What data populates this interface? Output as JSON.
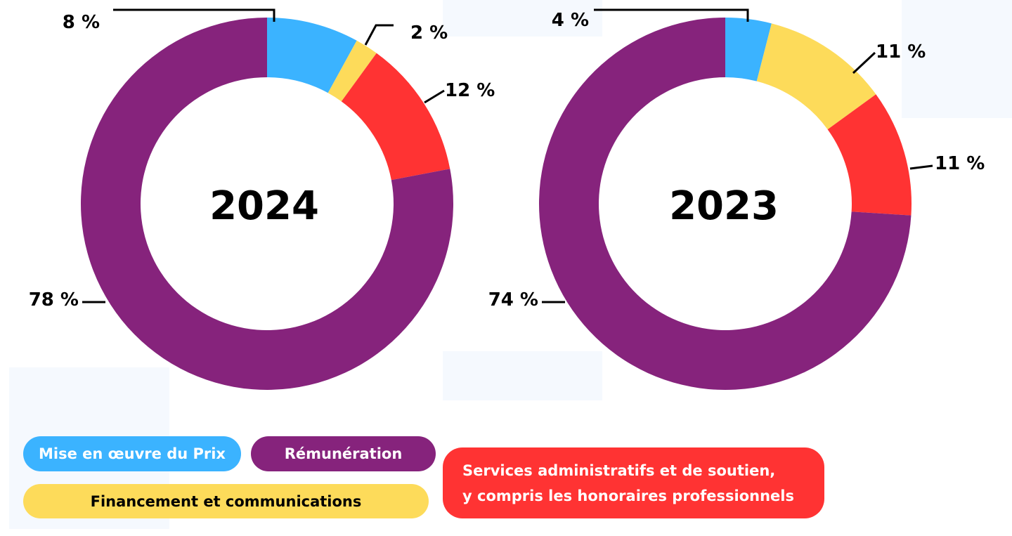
{
  "colors": {
    "mise_en_oeuvre": "#3BB3FF",
    "financement": "#FDDB5A",
    "services": "#FF3333",
    "remuneration": "#86237C"
  },
  "legend": {
    "mise_en_oeuvre": "Mise en œuvre du Prix",
    "remuneration": "Rémunération",
    "financement": "Financement et communications",
    "services": [
      "Services administratifs et de soutien,",
      "y compris les honoraires professionnels"
    ]
  },
  "chart_data": [
    {
      "type": "pie",
      "subtype": "donut",
      "center_label": "2024",
      "series": [
        {
          "name": "Mise en œuvre du Prix",
          "value": 8,
          "label": "8 %"
        },
        {
          "name": "Financement et communications",
          "value": 2,
          "label": "2 %"
        },
        {
          "name": "Services administratifs et de soutien, y compris les honoraires professionnels",
          "value": 12,
          "label": "12 %"
        },
        {
          "name": "Rémunération",
          "value": 78,
          "label": "78 %"
        }
      ]
    },
    {
      "type": "pie",
      "subtype": "donut",
      "center_label": "2023",
      "series": [
        {
          "name": "Mise en œuvre du Prix",
          "value": 4,
          "label": "4 %"
        },
        {
          "name": "Financement et communications",
          "value": 11,
          "label": "11 %"
        },
        {
          "name": "Services administratifs et de soutien, y compris les honoraires professionnels",
          "value": 11,
          "label": "11 %"
        },
        {
          "name": "Rémunération",
          "value": 74,
          "label": "74 %"
        }
      ]
    }
  ]
}
